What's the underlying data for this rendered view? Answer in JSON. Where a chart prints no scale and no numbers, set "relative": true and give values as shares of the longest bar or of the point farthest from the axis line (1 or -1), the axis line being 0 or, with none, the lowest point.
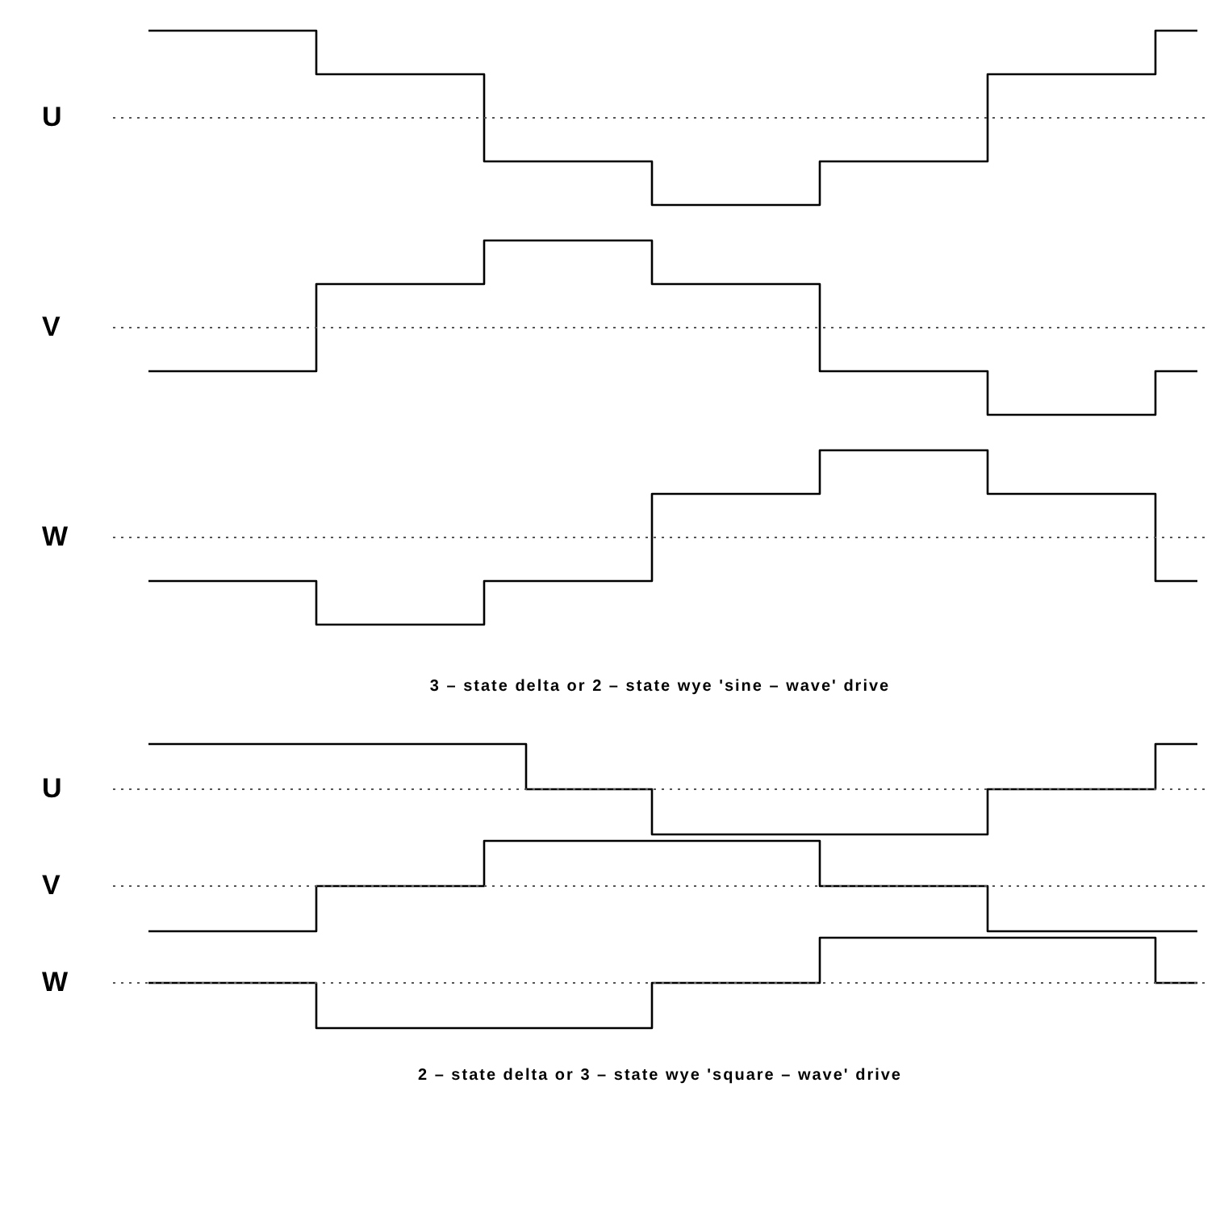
{
  "chart_data": [
    {
      "type": "step",
      "ylabel": "U",
      "relative": true,
      "legend": false,
      "marker": "none",
      "line_style": "solid",
      "categories": [
        null,
        null,
        null,
        null,
        null,
        null,
        null,
        null,
        null,
        null,
        null,
        null,
        null,
        null,
        null,
        null,
        null,
        null,
        null,
        null,
        null,
        null,
        null,
        null,
        null,
        null
      ],
      "series": [
        {
          "color": "#000000",
          "values": [
            1,
            1,
            1,
            1,
            0.5,
            0.5,
            0.5,
            0.5,
            -0.5,
            -0.5,
            -0.5,
            -0.5,
            -1,
            -1,
            -1,
            -1,
            -0.5,
            -0.5,
            -0.5,
            -0.5,
            0.5,
            0.5,
            0.5,
            0.5,
            1,
            1
          ]
        }
      ],
      "ref_lines": [
        {
          "axis": "y",
          "value": 0,
          "line_style": "dotted",
          "color": "#555555"
        }
      ]
    },
    {
      "type": "step",
      "ylabel": "V",
      "relative": true,
      "legend": false,
      "marker": "none",
      "line_style": "solid",
      "categories": [
        null,
        null,
        null,
        null,
        null,
        null,
        null,
        null,
        null,
        null,
        null,
        null,
        null,
        null,
        null,
        null,
        null,
        null,
        null,
        null,
        null,
        null,
        null,
        null,
        null,
        null
      ],
      "series": [
        {
          "color": "#000000",
          "values": [
            -0.5,
            -0.5,
            -0.5,
            -0.5,
            0.5,
            0.5,
            0.5,
            0.5,
            1,
            1,
            1,
            1,
            0.5,
            0.5,
            0.5,
            0.5,
            -0.5,
            -0.5,
            -0.5,
            -0.5,
            -1,
            -1,
            -1,
            -1,
            -0.5,
            -0.5
          ]
        }
      ],
      "ref_lines": [
        {
          "axis": "y",
          "value": 0,
          "line_style": "dotted",
          "color": "#555555"
        }
      ]
    },
    {
      "type": "step",
      "ylabel": "W",
      "relative": true,
      "legend": false,
      "marker": "none",
      "line_style": "solid",
      "categories": [
        null,
        null,
        null,
        null,
        null,
        null,
        null,
        null,
        null,
        null,
        null,
        null,
        null,
        null,
        null,
        null,
        null,
        null,
        null,
        null,
        null,
        null,
        null,
        null,
        null,
        null
      ],
      "series": [
        {
          "color": "#000000",
          "values": [
            -0.5,
            -0.5,
            -0.5,
            -0.5,
            -1,
            -1,
            -1,
            -1,
            -0.5,
            -0.5,
            -0.5,
            -0.5,
            0.5,
            0.5,
            0.5,
            0.5,
            1,
            1,
            1,
            1,
            0.5,
            0.5,
            0.5,
            0.5,
            -0.5,
            -0.5
          ]
        }
      ],
      "ref_lines": [
        {
          "axis": "y",
          "value": 0,
          "line_style": "dotted",
          "color": "#555555"
        }
      ],
      "annotations": [
        "3 – state delta or 2 – state wye 'sine – wave' drive"
      ]
    },
    {
      "type": "step",
      "ylabel": "U",
      "relative": true,
      "legend": false,
      "marker": "none",
      "line_style": "solid",
      "categories": [
        null,
        null,
        null,
        null,
        null,
        null,
        null,
        null,
        null,
        null,
        null,
        null,
        null,
        null,
        null,
        null,
        null,
        null,
        null,
        null,
        null,
        null,
        null,
        null,
        null,
        null
      ],
      "series": [
        {
          "color": "#000000",
          "values": [
            1,
            1,
            1,
            1,
            1,
            1,
            1,
            1,
            1,
            0,
            0,
            0,
            -1,
            -1,
            -1,
            -1,
            -1,
            -1,
            -1,
            -1,
            0,
            0,
            0,
            0,
            1,
            1
          ]
        }
      ],
      "ref_lines": [
        {
          "axis": "y",
          "value": 0,
          "line_style": "dotted",
          "color": "#555555"
        }
      ]
    },
    {
      "type": "step",
      "ylabel": "V",
      "relative": true,
      "legend": false,
      "marker": "none",
      "line_style": "solid",
      "categories": [
        null,
        null,
        null,
        null,
        null,
        null,
        null,
        null,
        null,
        null,
        null,
        null,
        null,
        null,
        null,
        null,
        null,
        null,
        null,
        null,
        null,
        null,
        null,
        null,
        null,
        null
      ],
      "series": [
        {
          "color": "#000000",
          "values": [
            -1,
            -1,
            -1,
            -1,
            0,
            0,
            0,
            0,
            1,
            1,
            1,
            1,
            1,
            1,
            1,
            1,
            0,
            0,
            0,
            0,
            -1,
            -1,
            -1,
            -1,
            -1,
            -1
          ]
        }
      ],
      "ref_lines": [
        {
          "axis": "y",
          "value": 0,
          "line_style": "dotted",
          "color": "#555555"
        }
      ]
    },
    {
      "type": "step",
      "ylabel": "W",
      "relative": true,
      "legend": false,
      "marker": "none",
      "line_style": "solid",
      "categories": [
        null,
        null,
        null,
        null,
        null,
        null,
        null,
        null,
        null,
        null,
        null,
        null,
        null,
        null,
        null,
        null,
        null,
        null,
        null,
        null,
        null,
        null,
        null,
        null,
        null,
        null
      ],
      "series": [
        {
          "color": "#000000",
          "values": [
            0,
            0,
            0,
            0,
            -1,
            -1,
            -1,
            -1,
            -1,
            -1,
            -1,
            -1,
            0,
            0,
            0,
            0,
            1,
            1,
            1,
            1,
            1,
            1,
            1,
            1,
            0,
            0
          ]
        }
      ],
      "ref_lines": [
        {
          "axis": "y",
          "value": 0,
          "line_style": "dotted",
          "color": "#555555"
        }
      ],
      "annotations": [
        "2 – state delta or 3 – state wye 'square – wave' drive"
      ]
    }
  ]
}
